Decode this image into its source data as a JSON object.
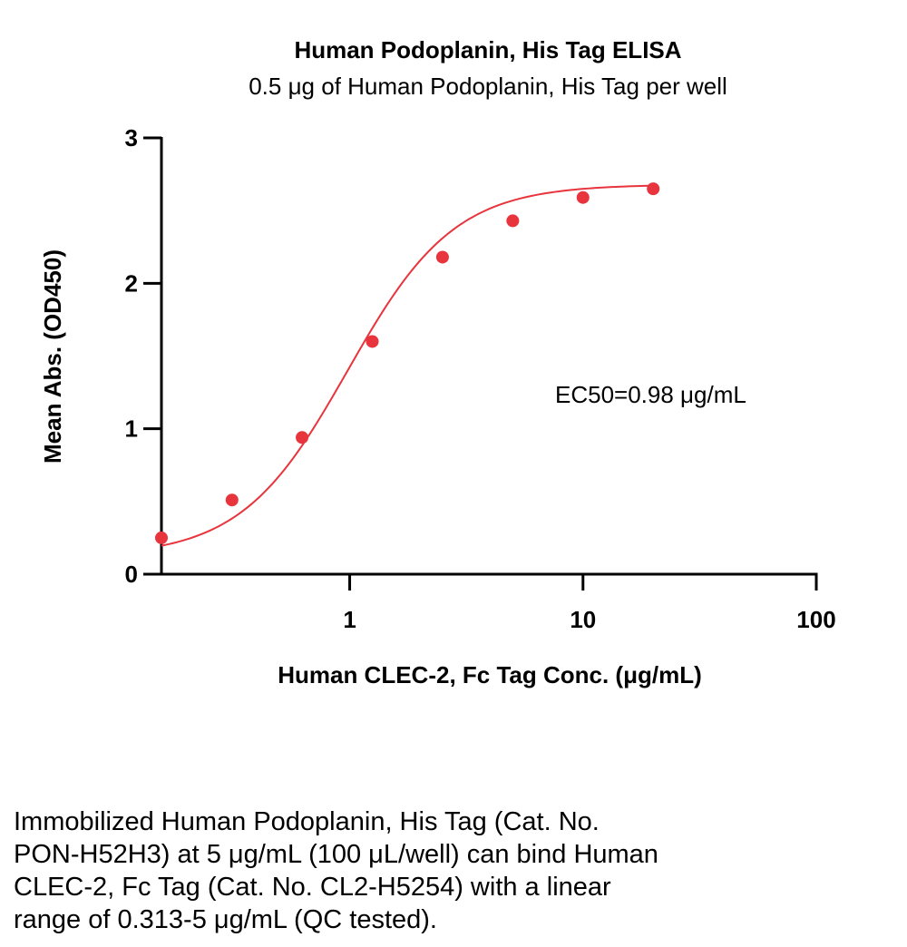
{
  "chart_data": {
    "type": "scatter",
    "title": "Human Podoplanin, His Tag ELISA",
    "subtitle": "0.5 μg of Human Podoplanin, His Tag per well",
    "xlabel": "Human CLEC-2, Fc Tag Conc. (μg/mL)",
    "ylabel": "Mean Abs. (OD450)",
    "x_scale": "log",
    "xlim": [
      0.156,
      100
    ],
    "ylim": [
      0,
      3
    ],
    "x_ticks": [
      1,
      10,
      100
    ],
    "x_tick_labels": [
      "1",
      "10",
      "100"
    ],
    "y_ticks": [
      0,
      1,
      2,
      3
    ],
    "y_tick_labels": [
      "0",
      "1",
      "2",
      "3"
    ],
    "grid": false,
    "series": [
      {
        "x": [
          0.156,
          0.313,
          0.625,
          1.25,
          2.5,
          5,
          10,
          20
        ],
        "y": [
          0.25,
          0.51,
          0.94,
          1.6,
          2.18,
          2.43,
          2.59,
          2.65
        ],
        "color": "#e8343c",
        "fit": "4PL"
      }
    ],
    "annotation": "EC50=0.98 μg/mL",
    "ec50": 0.98
  },
  "caption_lines": [
    "Immobilized Human Podoplanin, His Tag (Cat. No.",
    "PON-H52H3) at 5 μg/mL (100 μL/well) can bind Human",
    "CLEC-2, Fc Tag (Cat. No. CL2-H5254) with a linear",
    "range of 0.313-5 μg/mL (QC tested)."
  ]
}
